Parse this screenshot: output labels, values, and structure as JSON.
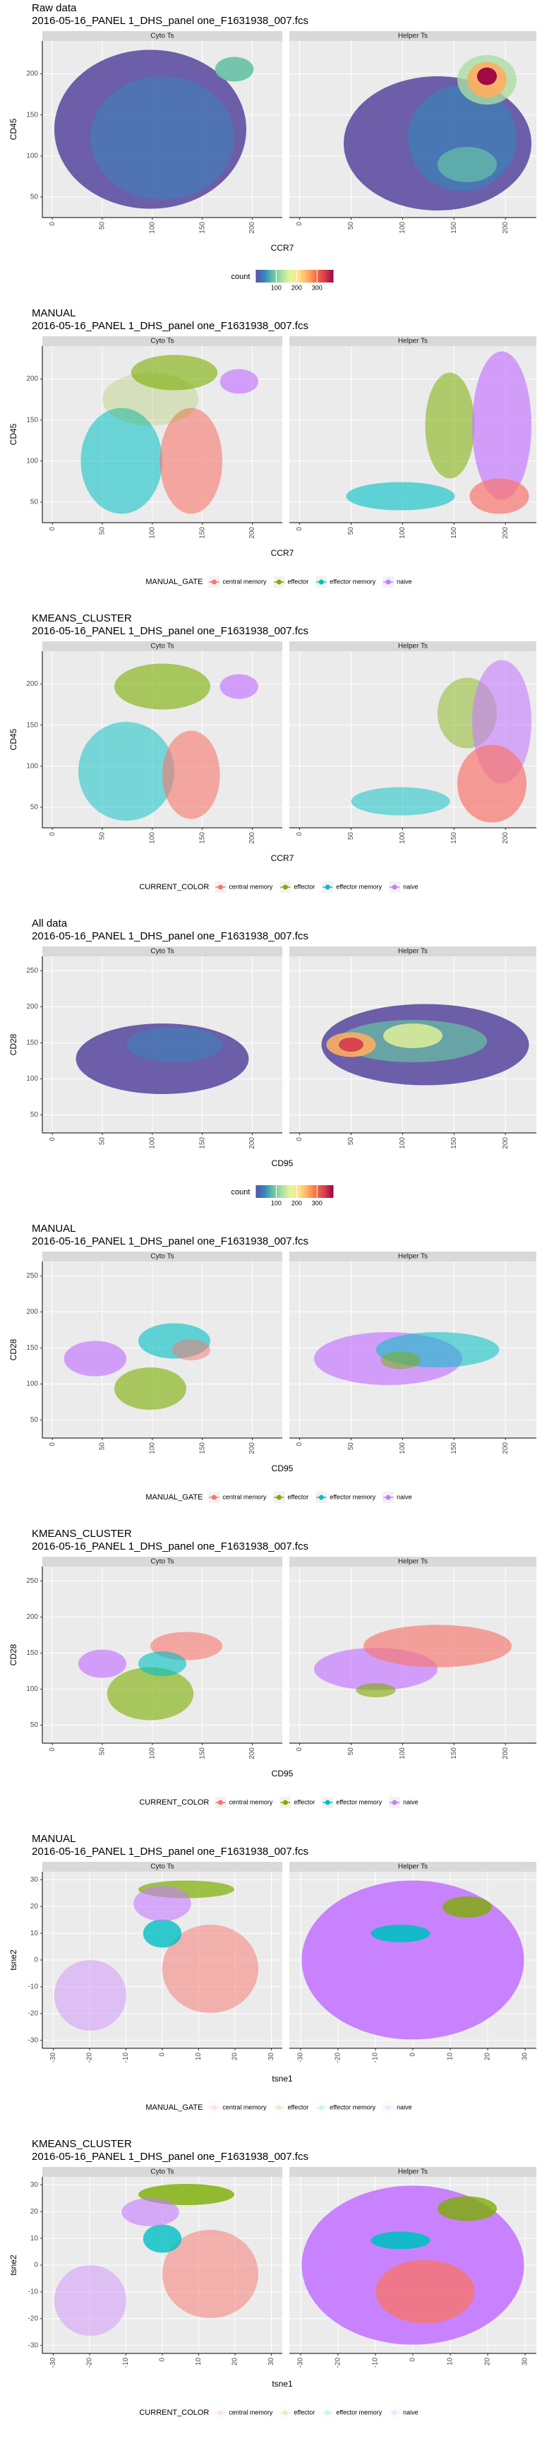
{
  "plots": [
    {
      "title": "Raw data",
      "subtitle": "2016-05-16_PANEL 1_DHS_panel one_F1631938_007.fcs",
      "facets": [
        "Cyto Ts",
        "Helper Ts"
      ],
      "x_label": "CCR7",
      "y_label": "CD45",
      "xlim": [
        -10,
        230
      ],
      "xticks": [
        0,
        50,
        100,
        150,
        200
      ],
      "ylim": [
        25,
        240
      ],
      "yticks": [
        50,
        100,
        150,
        200
      ],
      "legend": {
        "title": "count",
        "range": [
          0,
          380
        ],
        "ticks": [
          100,
          200,
          300
        ],
        "colors": [
          "#5E4FA2",
          "#3288BD",
          "#66C2A5",
          "#ABDDA4",
          "#E6F598",
          "#FEE08B",
          "#FDAE61",
          "#F46D43",
          "#D53E4F",
          "#9E0142"
        ]
      }
    },
    {
      "title": "MANUAL",
      "subtitle": "2016-05-16_PANEL 1_DHS_panel one_F1631938_007.fcs",
      "facets": [
        "Cyto Ts",
        "Helper Ts"
      ],
      "x_label": "CCR7",
      "y_label": "CD45",
      "xlim": [
        -10,
        230
      ],
      "xticks": [
        0,
        50,
        100,
        150,
        200
      ],
      "ylim": [
        25,
        240
      ],
      "yticks": [
        50,
        100,
        150,
        200
      ],
      "legend": {
        "title": "MANUAL_GATE",
        "key_alpha": 1,
        "items": [
          {
            "name": "central memory",
            "color": "#F8766D"
          },
          {
            "name": "effector",
            "color": "#7CAE00"
          },
          {
            "name": "effector memory",
            "color": "#00BFC4"
          },
          {
            "name": "naive",
            "color": "#C77CFF"
          }
        ]
      }
    },
    {
      "title": "KMEANS_CLUSTER",
      "subtitle": "2016-05-16_PANEL 1_DHS_panel one_F1631938_007.fcs",
      "facets": [
        "Cyto Ts",
        "Helper Ts"
      ],
      "x_label": "CCR7",
      "y_label": "CD45",
      "xlim": [
        -10,
        230
      ],
      "xticks": [
        0,
        50,
        100,
        150,
        200
      ],
      "ylim": [
        25,
        240
      ],
      "yticks": [
        50,
        100,
        150,
        200
      ],
      "legend": {
        "title": "CURRENT_COLOR",
        "key_alpha": 1,
        "items": [
          {
            "name": "central memory",
            "color": "#F8766D"
          },
          {
            "name": "effector",
            "color": "#7CAE00"
          },
          {
            "name": "effector memory",
            "color": "#00BFC4"
          },
          {
            "name": "naive",
            "color": "#C77CFF"
          }
        ]
      }
    },
    {
      "title": "All data",
      "subtitle": "2016-05-16_PANEL 1_DHS_panel one_F1631938_007.fcs",
      "facets": [
        "Cyto Ts",
        "Helper Ts"
      ],
      "x_label": "CD95",
      "y_label": "CD28",
      "xlim": [
        -10,
        230
      ],
      "xticks": [
        0,
        50,
        100,
        150,
        200
      ],
      "ylim": [
        25,
        270
      ],
      "yticks": [
        50,
        100,
        150,
        200,
        250
      ],
      "legend": {
        "title": "count",
        "range": [
          0,
          380
        ],
        "ticks": [
          100,
          200,
          300
        ],
        "colors": [
          "#5E4FA2",
          "#3288BD",
          "#66C2A5",
          "#ABDDA4",
          "#E6F598",
          "#FEE08B",
          "#FDAE61",
          "#F46D43",
          "#D53E4F",
          "#9E0142"
        ]
      }
    },
    {
      "title": "MANUAL",
      "subtitle": "2016-05-16_PANEL 1_DHS_panel one_F1631938_007.fcs",
      "facets": [
        "Cyto Ts",
        "Helper Ts"
      ],
      "x_label": "CD95",
      "y_label": "CD28",
      "xlim": [
        -10,
        230
      ],
      "xticks": [
        0,
        50,
        100,
        150,
        200
      ],
      "ylim": [
        25,
        270
      ],
      "yticks": [
        50,
        100,
        150,
        200,
        250
      ],
      "legend": {
        "title": "MANUAL_GATE",
        "key_alpha": 1,
        "items": [
          {
            "name": "central memory",
            "color": "#F8766D"
          },
          {
            "name": "effector",
            "color": "#7CAE00"
          },
          {
            "name": "effector memory",
            "color": "#00BFC4"
          },
          {
            "name": "naive",
            "color": "#C77CFF"
          }
        ]
      }
    },
    {
      "title": "KMEANS_CLUSTER",
      "subtitle": "2016-05-16_PANEL 1_DHS_panel one_F1631938_007.fcs",
      "facets": [
        "Cyto Ts",
        "Helper Ts"
      ],
      "x_label": "CD95",
      "y_label": "CD28",
      "xlim": [
        -10,
        230
      ],
      "xticks": [
        0,
        50,
        100,
        150,
        200
      ],
      "ylim": [
        25,
        270
      ],
      "yticks": [
        50,
        100,
        150,
        200,
        250
      ],
      "legend": {
        "title": "CURRENT_COLOR",
        "key_alpha": 1,
        "items": [
          {
            "name": "central memory",
            "color": "#F8766D"
          },
          {
            "name": "effector",
            "color": "#7CAE00"
          },
          {
            "name": "effector memory",
            "color": "#00BFC4"
          },
          {
            "name": "naive",
            "color": "#C77CFF"
          }
        ]
      }
    },
    {
      "title": "MANUAL",
      "subtitle": "2016-05-16_PANEL 1_DHS_panel one_F1631938_007.fcs",
      "facets": [
        "Cyto Ts",
        "Helper Ts"
      ],
      "x_label": "tsne1",
      "y_label": "tsne2",
      "xlim": [
        -33,
        33
      ],
      "xticks": [
        -30,
        -20,
        -10,
        0,
        10,
        20,
        30
      ],
      "ylim": [
        -33,
        33
      ],
      "yticks": [
        -30,
        -20,
        -10,
        0,
        10,
        20,
        30
      ],
      "legend": {
        "title": "MANUAL_GATE",
        "key_alpha": 0.2,
        "items": [
          {
            "name": "central memory",
            "color": "#F8766D"
          },
          {
            "name": "effector",
            "color": "#7CAE00"
          },
          {
            "name": "effector memory",
            "color": "#00BFC4"
          },
          {
            "name": "naive",
            "color": "#C77CFF"
          }
        ]
      }
    },
    {
      "title": "KMEANS_CLUSTER",
      "subtitle": "2016-05-16_PANEL 1_DHS_panel one_F1631938_007.fcs",
      "facets": [
        "Cyto Ts",
        "Helper Ts"
      ],
      "x_label": "tsne1",
      "y_label": "tsne2",
      "xlim": [
        -33,
        33
      ],
      "xticks": [
        -30,
        -20,
        -10,
        0,
        10,
        20,
        30
      ],
      "ylim": [
        -33,
        33
      ],
      "yticks": [
        -30,
        -20,
        -10,
        0,
        10,
        20,
        30
      ],
      "legend": {
        "title": "CURRENT_COLOR",
        "key_alpha": 0.2,
        "items": [
          {
            "name": "central memory",
            "color": "#F8766D"
          },
          {
            "name": "effector",
            "color": "#7CAE00"
          },
          {
            "name": "effector memory",
            "color": "#00BFC4"
          },
          {
            "name": "naive",
            "color": "#C77CFF"
          }
        ]
      }
    }
  ]
}
